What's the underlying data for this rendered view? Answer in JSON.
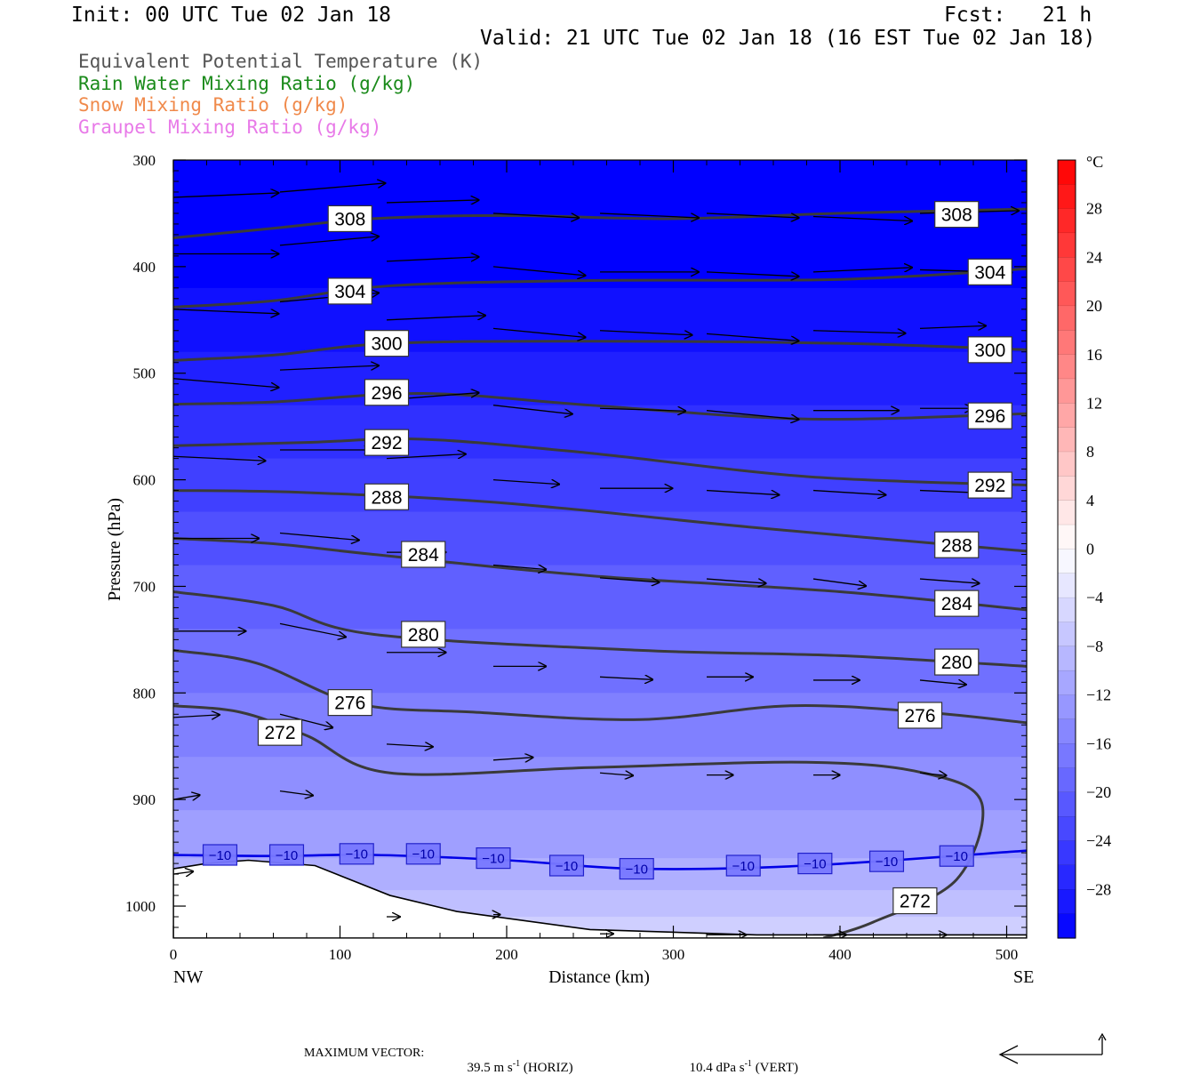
{
  "header": {
    "init": "Init: 00 UTC Tue 02 Jan 18",
    "fcst": "Fcst:   21 h",
    "valid": "Valid: 21 UTC Tue 02 Jan 18 (16 EST Tue 02 Jan 18)"
  },
  "legend": [
    {
      "label": "Equivalent Potential Temperature (K)",
      "color": "#555555"
    },
    {
      "label": "Rain Water Mixing Ratio (g/kg)",
      "color": "#1a8a1a"
    },
    {
      "label": "Snow Mixing Ratio (g/kg)",
      "color": "#f08a4b"
    },
    {
      "label": "Graupel Mixing Ratio (g/kg)",
      "color": "#e87ae8"
    }
  ],
  "footer": {
    "max_vector_label": "MAXIMUM VECTOR:",
    "horiz_value": "39.5 m s",
    "horiz_unit": "(HORIZ)",
    "vert_value": "10.4 dPa s",
    "vert_unit": "(VERT)",
    "exponent": "-1"
  },
  "chart_data": {
    "type": "heatmap",
    "title": "",
    "xlabel": "Distance (km)",
    "ylabel": "Pressure (hPa)",
    "xlim": [
      0,
      512
    ],
    "ylim": [
      300,
      1030
    ],
    "y_reversed": true,
    "x_ticks": [
      0,
      100,
      200,
      300,
      400,
      500
    ],
    "x_end_labels": {
      "left": "NW",
      "right": "SE"
    },
    "y_ticks": [
      300,
      400,
      500,
      600,
      700,
      800,
      900,
      1000
    ],
    "colorbar": {
      "unit": "°C",
      "range": [
        -32,
        32
      ],
      "labels": [
        28,
        24,
        20,
        16,
        12,
        8,
        4,
        0,
        -4,
        -8,
        -12,
        -16,
        -20,
        -24,
        -28
      ],
      "label_text": [
        "28",
        "24",
        "20",
        "16",
        "12",
        "8",
        "4",
        "0",
        "−4",
        "−8",
        "−12",
        "−16",
        "−20",
        "−24",
        "−28"
      ]
    },
    "temperature_levels": [
      {
        "p": 300,
        "t": -32
      },
      {
        "p": 420,
        "t": -30
      },
      {
        "p": 480,
        "t": -28
      },
      {
        "p": 530,
        "t": -26
      },
      {
        "p": 580,
        "t": -24
      },
      {
        "p": 630,
        "t": -22
      },
      {
        "p": 680,
        "t": -20
      },
      {
        "p": 740,
        "t": -18
      },
      {
        "p": 800,
        "t": -16
      },
      {
        "p": 860,
        "t": -14
      },
      {
        "p": 910,
        "t": -12
      },
      {
        "p": 955,
        "t": -10
      },
      {
        "p": 985,
        "t": -8
      },
      {
        "p": 1010,
        "t": -6
      },
      {
        "p": 1030,
        "t": -5
      }
    ],
    "theta_e_contours": [
      {
        "value": 308,
        "points": [
          [
            0,
            373
          ],
          [
            60,
            364
          ],
          [
            120,
            355
          ],
          [
            200,
            352
          ],
          [
            300,
            355
          ],
          [
            400,
            350
          ],
          [
            512,
            346
          ]
        ],
        "labels": [
          {
            "text": "308",
            "x": 106,
            "p": 355
          },
          {
            "text": "308",
            "x": 470,
            "p": 351
          }
        ]
      },
      {
        "value": 304,
        "points": [
          [
            0,
            438
          ],
          [
            60,
            432
          ],
          [
            130,
            418
          ],
          [
            250,
            413
          ],
          [
            400,
            412
          ],
          [
            512,
            402
          ]
        ],
        "labels": [
          {
            "text": "304",
            "x": 106,
            "p": 423
          },
          {
            "text": "304",
            "x": 490,
            "p": 405
          }
        ]
      },
      {
        "value": 300,
        "points": [
          [
            0,
            488
          ],
          [
            60,
            483
          ],
          [
            130,
            472
          ],
          [
            250,
            470
          ],
          [
            400,
            472
          ],
          [
            512,
            478
          ]
        ],
        "labels": [
          {
            "text": "300",
            "x": 128,
            "p": 472
          },
          {
            "text": "300",
            "x": 490,
            "p": 478
          }
        ]
      },
      {
        "value": 296,
        "points": [
          [
            0,
            529
          ],
          [
            60,
            527
          ],
          [
            150,
            519
          ],
          [
            250,
            530
          ],
          [
            380,
            543
          ],
          [
            512,
            538
          ]
        ],
        "labels": [
          {
            "text": "296",
            "x": 128,
            "p": 518
          },
          {
            "text": "296",
            "x": 490,
            "p": 540
          }
        ]
      },
      {
        "value": 292,
        "points": [
          [
            0,
            568
          ],
          [
            80,
            565
          ],
          [
            150,
            562
          ],
          [
            250,
            575
          ],
          [
            380,
            597
          ],
          [
            512,
            605
          ]
        ],
        "labels": [
          {
            "text": "292",
            "x": 128,
            "p": 565
          },
          {
            "text": "292",
            "x": 490,
            "p": 605
          }
        ]
      },
      {
        "value": 288,
        "points": [
          [
            0,
            610
          ],
          [
            80,
            612
          ],
          [
            200,
            622
          ],
          [
            350,
            645
          ],
          [
            512,
            667
          ]
        ],
        "labels": [
          {
            "text": "288",
            "x": 128,
            "p": 616
          },
          {
            "text": "288",
            "x": 470,
            "p": 661
          }
        ]
      },
      {
        "value": 284,
        "points": [
          [
            0,
            655
          ],
          [
            60,
            660
          ],
          [
            120,
            670
          ],
          [
            250,
            690
          ],
          [
            400,
            705
          ],
          [
            512,
            722
          ]
        ],
        "labels": [
          {
            "text": "284",
            "x": 150,
            "p": 670
          },
          {
            "text": "284",
            "x": 470,
            "p": 716
          }
        ]
      },
      {
        "value": 280,
        "points": [
          [
            0,
            705
          ],
          [
            60,
            718
          ],
          [
            120,
            745
          ],
          [
            280,
            760
          ],
          [
            400,
            765
          ],
          [
            512,
            775
          ]
        ],
        "labels": [
          {
            "text": "280",
            "x": 150,
            "p": 745
          },
          {
            "text": "280",
            "x": 470,
            "p": 771
          }
        ]
      },
      {
        "value": 276,
        "points": [
          [
            0,
            760
          ],
          [
            50,
            772
          ],
          [
            110,
            810
          ],
          [
            180,
            818
          ],
          [
            280,
            825
          ],
          [
            370,
            812
          ],
          [
            450,
            818
          ],
          [
            512,
            828
          ]
        ],
        "labels": [
          {
            "text": "276",
            "x": 106,
            "p": 809
          },
          {
            "text": "276",
            "x": 448,
            "p": 821
          }
        ]
      },
      {
        "value": 272,
        "points": [
          [
            0,
            812
          ],
          [
            40,
            818
          ],
          [
            80,
            840
          ],
          [
            130,
            875
          ],
          [
            250,
            870
          ],
          [
            380,
            865
          ],
          [
            450,
            875
          ],
          [
            485,
            903
          ],
          [
            470,
            975
          ],
          [
            420,
            1015
          ],
          [
            390,
            1030
          ]
        ],
        "labels": [
          {
            "text": "272",
            "x": 64,
            "p": 837
          },
          {
            "text": "272",
            "x": 445,
            "p": 995
          }
        ]
      }
    ],
    "isotherm_m10": {
      "value": -10,
      "points": [
        [
          0,
          952
        ],
        [
          60,
          953
        ],
        [
          120,
          952
        ],
        [
          200,
          957
        ],
        [
          280,
          965
        ],
        [
          380,
          962
        ],
        [
          512,
          948
        ]
      ],
      "labels": [
        {
          "text": "−10",
          "x": 28,
          "p": 952
        },
        {
          "text": "−10",
          "x": 68,
          "p": 952
        },
        {
          "text": "−10",
          "x": 110,
          "p": 951
        },
        {
          "text": "−10",
          "x": 150,
          "p": 951
        },
        {
          "text": "−10",
          "x": 192,
          "p": 955
        },
        {
          "text": "−10",
          "x": 236,
          "p": 962
        },
        {
          "text": "−10",
          "x": 278,
          "p": 965
        },
        {
          "text": "−10",
          "x": 342,
          "p": 962
        },
        {
          "text": "−10",
          "x": 385,
          "p": 960
        },
        {
          "text": "−10",
          "x": 428,
          "p": 958
        },
        {
          "text": "−10",
          "x": 470,
          "p": 953
        }
      ]
    },
    "terrain": [
      [
        0,
        965
      ],
      [
        20,
        960
      ],
      [
        45,
        957
      ],
      [
        85,
        962
      ],
      [
        130,
        990
      ],
      [
        170,
        1005
      ],
      [
        250,
        1022
      ],
      [
        350,
        1027
      ],
      [
        450,
        1027
      ],
      [
        512,
        1027
      ]
    ],
    "wind_vectors": [
      {
        "x": 0,
        "p": 335,
        "u": 64,
        "v": -5
      },
      {
        "x": 64,
        "p": 330,
        "u": 64,
        "v": -10
      },
      {
        "x": 128,
        "p": 340,
        "u": 56,
        "v": -3
      },
      {
        "x": 192,
        "p": 350,
        "u": 52,
        "v": 5
      },
      {
        "x": 256,
        "p": 350,
        "u": 60,
        "v": 5
      },
      {
        "x": 320,
        "p": 350,
        "u": 56,
        "v": 5
      },
      {
        "x": 384,
        "p": 353,
        "u": 60,
        "v": 5
      },
      {
        "x": 448,
        "p": 350,
        "u": 60,
        "v": -3
      },
      {
        "x": 0,
        "p": 388,
        "u": 64,
        "v": 0
      },
      {
        "x": 64,
        "p": 380,
        "u": 60,
        "v": -10
      },
      {
        "x": 128,
        "p": 395,
        "u": 56,
        "v": -5
      },
      {
        "x": 192,
        "p": 400,
        "u": 56,
        "v": 10
      },
      {
        "x": 256,
        "p": 405,
        "u": 60,
        "v": 0
      },
      {
        "x": 320,
        "p": 405,
        "u": 56,
        "v": 5
      },
      {
        "x": 384,
        "p": 405,
        "u": 60,
        "v": -5
      },
      {
        "x": 448,
        "p": 403,
        "u": 56,
        "v": 3
      },
      {
        "x": 0,
        "p": 440,
        "u": 64,
        "v": 5
      },
      {
        "x": 64,
        "p": 433,
        "u": 60,
        "v": -10
      },
      {
        "x": 128,
        "p": 450,
        "u": 60,
        "v": -5
      },
      {
        "x": 192,
        "p": 458,
        "u": 56,
        "v": 10
      },
      {
        "x": 256,
        "p": 460,
        "u": 56,
        "v": 5
      },
      {
        "x": 320,
        "p": 463,
        "u": 56,
        "v": 8
      },
      {
        "x": 384,
        "p": 460,
        "u": 56,
        "v": 3
      },
      {
        "x": 448,
        "p": 458,
        "u": 40,
        "v": -3
      },
      {
        "x": 0,
        "p": 505,
        "u": 64,
        "v": 10
      },
      {
        "x": 64,
        "p": 497,
        "u": 60,
        "v": -5
      },
      {
        "x": 128,
        "p": 525,
        "u": 56,
        "v": -8
      },
      {
        "x": 192,
        "p": 530,
        "u": 48,
        "v": 10
      },
      {
        "x": 256,
        "p": 533,
        "u": 52,
        "v": 3
      },
      {
        "x": 320,
        "p": 535,
        "u": 56,
        "v": 10
      },
      {
        "x": 384,
        "p": 535,
        "u": 52,
        "v": 0
      },
      {
        "x": 448,
        "p": 533,
        "u": 32,
        "v": 0
      },
      {
        "x": 0,
        "p": 578,
        "u": 56,
        "v": 5
      },
      {
        "x": 64,
        "p": 572,
        "u": 56,
        "v": 0
      },
      {
        "x": 128,
        "p": 580,
        "u": 48,
        "v": -5
      },
      {
        "x": 192,
        "p": 600,
        "u": 40,
        "v": 5
      },
      {
        "x": 256,
        "p": 608,
        "u": 44,
        "v": 0
      },
      {
        "x": 320,
        "p": 610,
        "u": 44,
        "v": 5
      },
      {
        "x": 384,
        "p": 610,
        "u": 44,
        "v": 5
      },
      {
        "x": 448,
        "p": 610,
        "u": 40,
        "v": 3
      },
      {
        "x": 0,
        "p": 655,
        "u": 52,
        "v": 0
      },
      {
        "x": 64,
        "p": 650,
        "u": 48,
        "v": 8
      },
      {
        "x": 128,
        "p": 668,
        "u": 36,
        "v": 0
      },
      {
        "x": 192,
        "p": 680,
        "u": 32,
        "v": 5
      },
      {
        "x": 256,
        "p": 692,
        "u": 36,
        "v": 5
      },
      {
        "x": 320,
        "p": 693,
        "u": 36,
        "v": 5
      },
      {
        "x": 384,
        "p": 693,
        "u": 32,
        "v": 8
      },
      {
        "x": 448,
        "p": 693,
        "u": 36,
        "v": 5
      },
      {
        "x": 0,
        "p": 742,
        "u": 44,
        "v": 0
      },
      {
        "x": 64,
        "p": 735,
        "u": 40,
        "v": 15
      },
      {
        "x": 128,
        "p": 762,
        "u": 36,
        "v": 0
      },
      {
        "x": 192,
        "p": 775,
        "u": 32,
        "v": 0
      },
      {
        "x": 256,
        "p": 785,
        "u": 32,
        "v": 3
      },
      {
        "x": 320,
        "p": 785,
        "u": 28,
        "v": 0
      },
      {
        "x": 384,
        "p": 788,
        "u": 28,
        "v": 0
      },
      {
        "x": 448,
        "p": 788,
        "u": 28,
        "v": 5
      },
      {
        "x": 0,
        "p": 823,
        "u": 28,
        "v": -3
      },
      {
        "x": 64,
        "p": 820,
        "u": 32,
        "v": 15
      },
      {
        "x": 128,
        "p": 848,
        "u": 28,
        "v": 3
      },
      {
        "x": 192,
        "p": 863,
        "u": 24,
        "v": -3
      },
      {
        "x": 256,
        "p": 875,
        "u": 20,
        "v": 3
      },
      {
        "x": 320,
        "p": 877,
        "u": 16,
        "v": 0
      },
      {
        "x": 384,
        "p": 877,
        "u": 16,
        "v": 0
      },
      {
        "x": 448,
        "p": 875,
        "u": 16,
        "v": 3
      },
      {
        "x": 0,
        "p": 900,
        "u": 16,
        "v": -5
      },
      {
        "x": 64,
        "p": 892,
        "u": 20,
        "v": 5
      },
      {
        "x": 0,
        "p": 970,
        "u": 12,
        "v": -3
      },
      {
        "x": 128,
        "p": 1010,
        "u": 8,
        "v": 0
      },
      {
        "x": 192,
        "p": 1008,
        "u": 4,
        "v": 0
      },
      {
        "x": 256,
        "p": 1026,
        "u": 8,
        "v": 0
      },
      {
        "x": 320,
        "p": 1027,
        "u": 24,
        "v": 0
      },
      {
        "x": 384,
        "p": 1027,
        "u": 20,
        "v": 0
      },
      {
        "x": 448,
        "p": 1027,
        "u": 16,
        "v": 0
      }
    ]
  }
}
